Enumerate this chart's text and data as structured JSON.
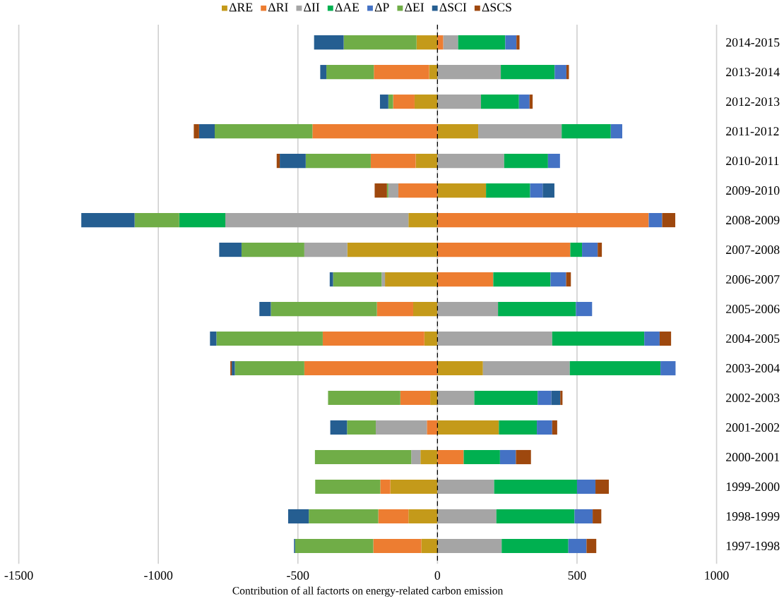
{
  "chart_data": {
    "type": "bar",
    "orientation": "horizontal",
    "stacked": true,
    "xlabel": "Contribution of all factorts on energy-related carbon emission",
    "categories": [
      "2014-2015",
      "2013-2014",
      "2012-2013",
      "2011-2012",
      "2010-2011",
      "2009-2010",
      "2008-2009",
      "2007-2008",
      "2006-2007",
      "2005-2006",
      "2004-2005",
      "2003-2004",
      "2002-2003",
      "2001-2002",
      "2000-2001",
      "1999-2000",
      "1998-1999",
      "1997-1998"
    ],
    "series": [
      {
        "name": "ΔRE",
        "color": "#c49a1a",
        "values": [
          -75,
          -30,
          -82,
          146,
          -78,
          174,
          -104,
          -323,
          -188,
          -87,
          -47,
          163,
          -26,
          220,
          -61,
          -169,
          -104,
          -58
        ]
      },
      {
        "name": "ΔRI",
        "color": "#ed7d31",
        "values": [
          21,
          -198,
          -77,
          -448,
          -161,
          -140,
          757,
          476,
          200,
          -130,
          -364,
          -477,
          -107,
          -38,
          94,
          -36,
          -108,
          -172
        ]
      },
      {
        "name": "ΔII",
        "color": "#a5a5a5",
        "values": [
          53,
          227,
          156,
          299,
          239,
          -36,
          -656,
          -154,
          -12,
          217,
          411,
          311,
          132,
          -183,
          -33,
          203,
          211,
          230
        ]
      },
      {
        "name": "ΔAE",
        "color": "#00b050",
        "values": [
          169,
          193,
          136,
          176,
          157,
          158,
          -165,
          42,
          205,
          279,
          330,
          325,
          227,
          136,
          130,
          297,
          280,
          239
        ]
      },
      {
        "name": "ΔP",
        "color": "#4472c4",
        "values": [
          40,
          42,
          38,
          41,
          43,
          45,
          48,
          56,
          56,
          58,
          55,
          54,
          49,
          55,
          57,
          66,
          65,
          65
        ]
      },
      {
        "name": "ΔEI",
        "color": "#70ad47",
        "values": [
          -261,
          -170,
          -17,
          -350,
          -233,
          -5,
          -160,
          -225,
          -174,
          -380,
          -381,
          -249,
          -259,
          -103,
          -345,
          -233,
          -249,
          -280
        ]
      },
      {
        "name": "ΔSCI",
        "color": "#255e91",
        "values": [
          -106,
          -22,
          -30,
          -56,
          -93,
          42,
          -191,
          -80,
          -12,
          -41,
          -23,
          -11,
          32,
          -60,
          0,
          0,
          -74,
          -4
        ]
      },
      {
        "name": "ΔSCS",
        "color": "#9e480e",
        "values": [
          11,
          9,
          11,
          -19,
          -11,
          -44,
          47,
          15,
          17,
          0,
          41,
          -5,
          8,
          18,
          54,
          48,
          31,
          35
        ]
      }
    ],
    "xlim": [
      -1500,
      1000
    ],
    "xticks": [
      -1500,
      -1000,
      -500,
      0,
      500,
      1000
    ],
    "grid": "x",
    "legend": "top",
    "ref_lines": [
      {
        "axis": "x",
        "value": 0,
        "color": "#000000",
        "line_style": "dashed"
      }
    ]
  }
}
